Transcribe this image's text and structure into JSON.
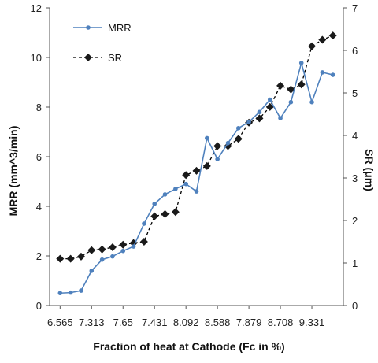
{
  "chart_data": {
    "type": "line",
    "title": "",
    "xlabel": "Fraction of heat at Cathode (Fc in %)",
    "ylabel_left": "MRR (mm^3/min)",
    "ylabel_right": "SR (μm)",
    "ylim_left": [
      0,
      12
    ],
    "ylim_right": [
      0,
      7
    ],
    "yticks_left": [
      "0",
      "2",
      "4",
      "6",
      "8",
      "10",
      "12"
    ],
    "yticks_right": [
      "0",
      "1",
      "2",
      "3",
      "4",
      "5",
      "6",
      "7"
    ],
    "x_tick_labels": [
      "6.565",
      "7.313",
      "7.65",
      "7.431",
      "8.092",
      "8.588",
      "7.879",
      "8.708",
      "9.331"
    ],
    "grid": false,
    "legend_position": "top-left",
    "series": [
      {
        "name": "MRR",
        "axis": "left",
        "color": "#4f81bd",
        "marker": "circle",
        "line": "solid",
        "values": [
          0.5,
          0.52,
          0.6,
          1.4,
          1.85,
          1.98,
          2.2,
          2.38,
          3.3,
          4.1,
          4.48,
          4.7,
          4.9,
          4.6,
          6.75,
          5.9,
          6.55,
          7.15,
          7.4,
          7.8,
          8.3,
          7.55,
          8.2,
          9.78,
          8.2,
          9.4,
          9.3
        ]
      },
      {
        "name": "SR",
        "axis": "right",
        "color": "#000000",
        "marker": "diamond",
        "line": "dashed",
        "values": [
          1.1,
          1.1,
          1.15,
          1.3,
          1.32,
          1.37,
          1.43,
          1.47,
          1.5,
          2.1,
          2.15,
          2.2,
          3.07,
          3.17,
          3.28,
          3.75,
          3.75,
          3.92,
          4.3,
          4.4,
          4.67,
          5.17,
          5.08,
          5.2,
          6.1,
          6.25,
          6.35
        ]
      }
    ]
  }
}
